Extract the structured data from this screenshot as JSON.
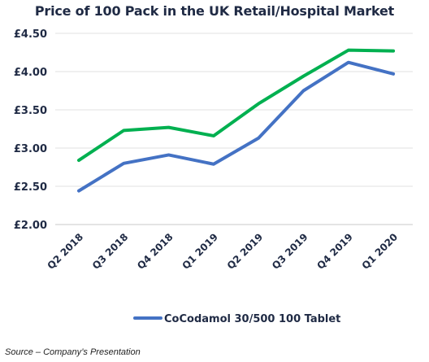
{
  "chart_data": {
    "type": "line",
    "title": "Price of 100 Pack in the UK Retail/Hospital Market",
    "categories": [
      "Q2 2018",
      "Q3 2018",
      "Q4 2018",
      "Q1 2019",
      "Q2 2019",
      "Q3 2019",
      "Q4 2019",
      "Q1 2020"
    ],
    "y_ticks": [
      "£2.00",
      "£2.50",
      "£3.00",
      "£3.50",
      "£4.00",
      "£4.50"
    ],
    "ylim": [
      2.0,
      4.5
    ],
    "grid": true,
    "legend_position": "bottom",
    "series": [
      {
        "name": "CoCodamol 30/500 100 Tablet",
        "color": "#4472c4",
        "values": [
          2.44,
          2.8,
          2.91,
          2.79,
          3.13,
          3.75,
          4.12,
          3.97
        ]
      },
      {
        "color": "#00b050",
        "values": [
          2.84,
          3.23,
          3.27,
          3.16,
          3.58,
          3.94,
          4.28,
          4.27
        ]
      }
    ]
  },
  "footer": {
    "source": "Source – Company’s Presentation"
  }
}
